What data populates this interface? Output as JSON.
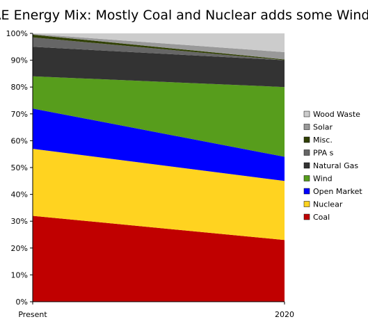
{
  "chart_data": {
    "type": "area",
    "stacked_percent": true,
    "title": "AE Energy Mix: Mostly Coal and Nuclear adds some Wind",
    "x": [
      "Present",
      "2020"
    ],
    "y_ticks": [
      "0%",
      "10%",
      "20%",
      "30%",
      "40%",
      "50%",
      "60%",
      "70%",
      "80%",
      "90%",
      "100%"
    ],
    "ylim": [
      0,
      100
    ],
    "grid": false,
    "legend_position": "right",
    "series": [
      {
        "name": "Coal",
        "values": [
          32,
          23
        ],
        "color": "#c00000"
      },
      {
        "name": "Nuclear",
        "values": [
          25,
          22
        ],
        "color": "#ffd320"
      },
      {
        "name": "Open Market",
        "values": [
          15,
          9
        ],
        "color": "#0000ff"
      },
      {
        "name": "Wind",
        "values": [
          12,
          26
        ],
        "color": "#579d1c"
      },
      {
        "name": "Natural Gas",
        "values": [
          11,
          10
        ],
        "color": "#333333"
      },
      {
        "name": "PPA s",
        "values": [
          3.5,
          0
        ],
        "color": "#666666"
      },
      {
        "name": "Misc.",
        "values": [
          1,
          0.3
        ],
        "color": "#314004"
      },
      {
        "name": "Solar",
        "values": [
          0.3,
          2.7
        ],
        "color": "#999999"
      },
      {
        "name": "Wood Waste",
        "values": [
          0.2,
          7
        ],
        "color": "#cccccc"
      }
    ]
  }
}
